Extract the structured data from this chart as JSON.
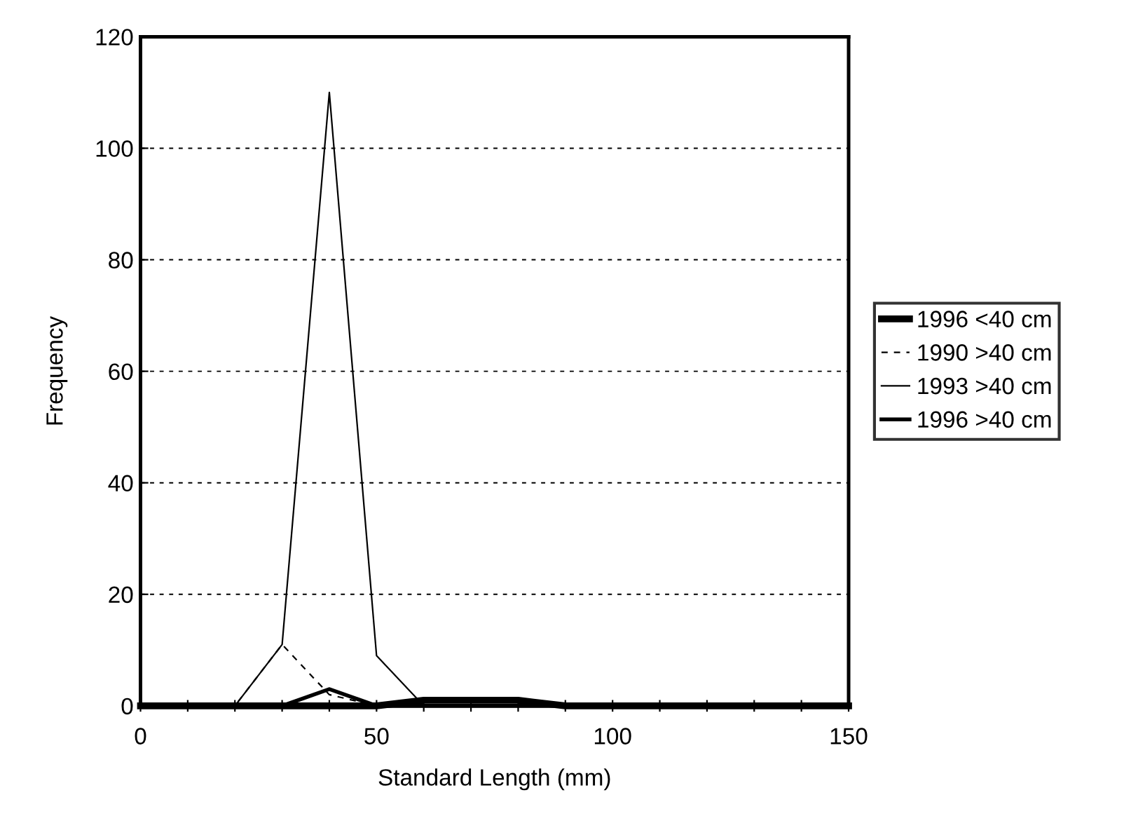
{
  "chart_data": {
    "type": "line",
    "xlabel": "Standard Length (mm)",
    "ylabel": "Frequency",
    "x": [
      0,
      10,
      20,
      30,
      40,
      50,
      60,
      70,
      80,
      90,
      100,
      110,
      120,
      130,
      140,
      150
    ],
    "series": [
      {
        "name": "1996 <40 cm",
        "color": "#000000",
        "line_style": "solid",
        "values": [
          0,
          0,
          0,
          0,
          0,
          0,
          1,
          1,
          1,
          0,
          0,
          0,
          0,
          0,
          0,
          0
        ]
      },
      {
        "name": "1990 >40 cm",
        "color": "#000000",
        "line_style": "dashed",
        "values": [
          0,
          0,
          0,
          11,
          2,
          0,
          0,
          0,
          0,
          0,
          0,
          0,
          0,
          0,
          0,
          0
        ]
      },
      {
        "name": "1993 >40 cm",
        "color": "#000000",
        "line_style": "solid",
        "values": [
          0,
          0,
          0,
          11,
          110,
          9,
          0,
          0,
          0,
          0,
          0,
          0,
          0,
          0,
          0,
          0
        ]
      },
      {
        "name": "1996 >40 cm",
        "color": "#000000",
        "line_style": "solid",
        "values": [
          0,
          0,
          0,
          0,
          3,
          0,
          0,
          0,
          0,
          0,
          0,
          0,
          0,
          0,
          0,
          0
        ]
      }
    ],
    "xlim": [
      0,
      150
    ],
    "xticks": [
      0,
      {
        "value": 10,
        "label": null
      },
      {
        "value": 20,
        "label": null
      },
      {
        "value": 30,
        "label": null
      },
      {
        "value": 40,
        "label": null
      },
      50,
      {
        "value": 60,
        "label": null
      },
      {
        "value": 70,
        "label": null
      },
      {
        "value": 80,
        "label": null
      },
      {
        "value": 90,
        "label": null
      },
      100,
      {
        "value": 110,
        "label": null
      },
      {
        "value": 120,
        "label": null
      },
      {
        "value": 130,
        "label": null
      },
      {
        "value": 140,
        "label": null
      },
      150
    ],
    "ylim": [
      0,
      120
    ],
    "yticks": [
      0,
      20,
      40,
      60,
      80,
      100,
      120
    ],
    "grid": "y",
    "legend": "right",
    "marker": "none"
  }
}
